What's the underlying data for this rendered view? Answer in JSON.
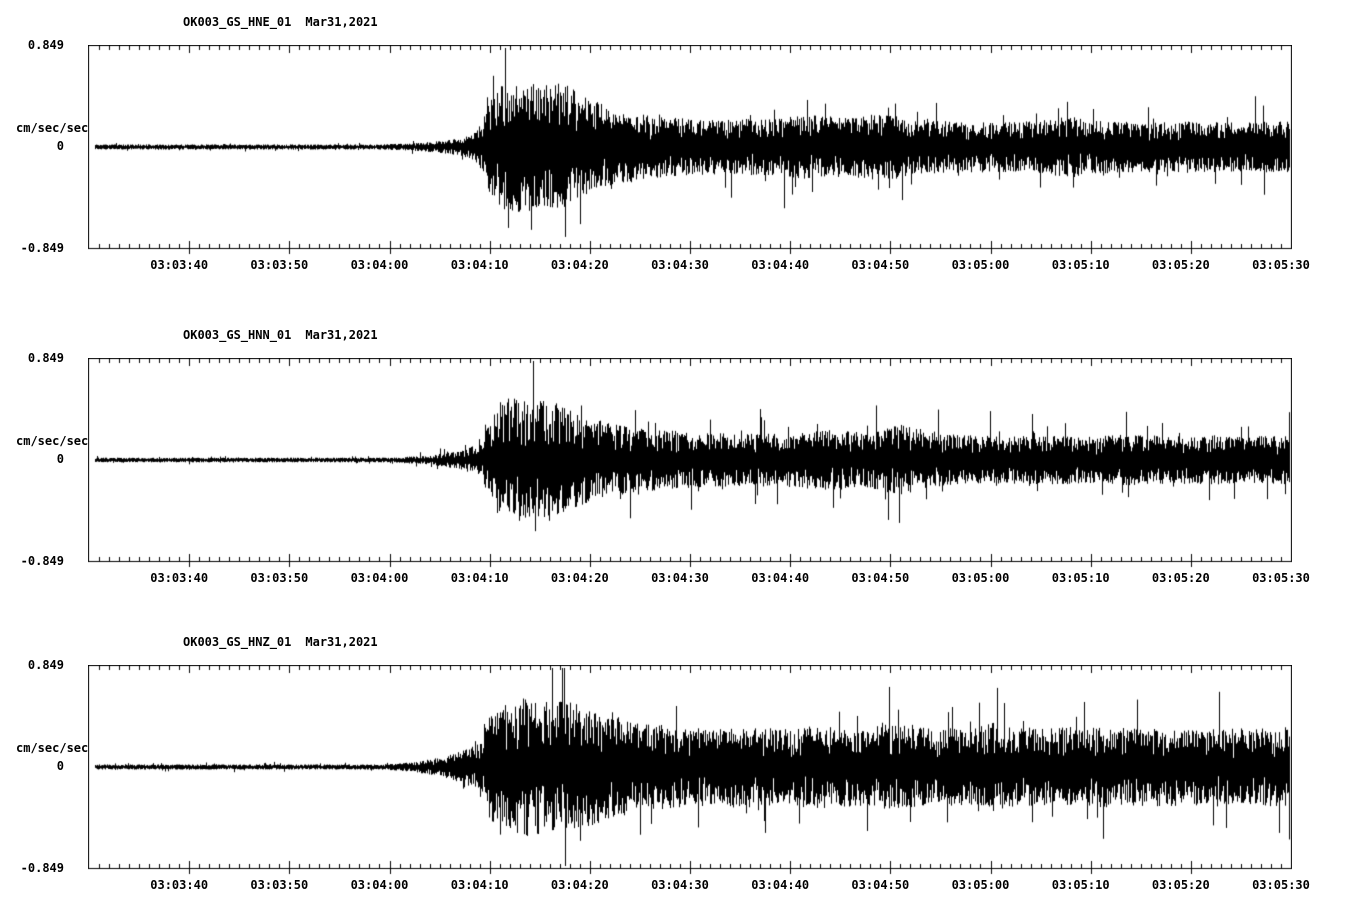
{
  "page": {
    "background": "#ffffff",
    "foreground": "#000000"
  },
  "chart_data": [
    {
      "type": "line",
      "subtype": "seismogram",
      "station_channel": "OK003_GS_HNE_01",
      "date": "Mar31,2021",
      "ylabel": "cm/sec/sec",
      "ylim": [
        -0.849,
        0.849
      ],
      "y_tick_labels": {
        "top": "0.849",
        "zero": "0",
        "bottom": "-0.849"
      },
      "x_start_time": "03:03:31",
      "x_end_time": "03:05:31",
      "x_tick_labels": [
        "03:03:40",
        "03:03:50",
        "03:04:00",
        "03:04:10",
        "03:04:20",
        "03:04:30",
        "03:04:40",
        "03:04:50",
        "03:05:00",
        "03:05:10",
        "03:05:20",
        "03:05:30"
      ],
      "x_tick_offsets_sec": [
        9,
        19,
        29,
        39,
        49,
        59,
        69,
        79,
        89,
        99,
        109,
        119
      ],
      "minor_tick_sec": 1,
      "major_tick_sec": 10,
      "seed": 11,
      "envelope": [
        [
          0,
          0.022
        ],
        [
          29,
          0.022
        ],
        [
          33,
          0.035
        ],
        [
          36,
          0.06
        ],
        [
          38,
          0.1
        ],
        [
          39,
          0.18
        ],
        [
          40,
          0.4
        ],
        [
          41,
          0.52
        ],
        [
          43,
          0.58
        ],
        [
          45,
          0.52
        ],
        [
          47,
          0.56
        ],
        [
          49,
          0.44
        ],
        [
          52,
          0.34
        ],
        [
          56,
          0.27
        ],
        [
          60,
          0.24
        ],
        [
          64,
          0.23
        ],
        [
          68,
          0.25
        ],
        [
          72,
          0.27
        ],
        [
          76,
          0.25
        ],
        [
          79,
          0.3
        ],
        [
          82,
          0.24
        ],
        [
          86,
          0.22
        ],
        [
          90,
          0.21
        ],
        [
          94,
          0.22
        ],
        [
          98,
          0.26
        ],
        [
          102,
          0.22
        ],
        [
          106,
          0.21
        ],
        [
          110,
          0.22
        ],
        [
          114,
          0.21
        ],
        [
          120,
          0.22
        ]
      ]
    },
    {
      "type": "line",
      "subtype": "seismogram",
      "station_channel": "OK003_GS_HNN_01",
      "date": "Mar31,2021",
      "ylabel": "cm/sec/sec",
      "ylim": [
        -0.849,
        0.849
      ],
      "y_tick_labels": {
        "top": "0.849",
        "zero": "0",
        "bottom": "-0.849"
      },
      "x_start_time": "03:03:31",
      "x_end_time": "03:05:31",
      "x_tick_labels": [
        "03:03:40",
        "03:03:50",
        "03:04:00",
        "03:04:10",
        "03:04:20",
        "03:04:30",
        "03:04:40",
        "03:04:50",
        "03:05:00",
        "03:05:10",
        "03:05:20",
        "03:05:30"
      ],
      "x_tick_offsets_sec": [
        9,
        19,
        29,
        39,
        49,
        59,
        69,
        79,
        89,
        99,
        109,
        119
      ],
      "minor_tick_sec": 1,
      "major_tick_sec": 10,
      "seed": 23,
      "envelope": [
        [
          0,
          0.02
        ],
        [
          30,
          0.02
        ],
        [
          34,
          0.04
        ],
        [
          37,
          0.08
        ],
        [
          39,
          0.14
        ],
        [
          40,
          0.35
        ],
        [
          41,
          0.5
        ],
        [
          42,
          0.55
        ],
        [
          44,
          0.48
        ],
        [
          46,
          0.52
        ],
        [
          48,
          0.42
        ],
        [
          51,
          0.33
        ],
        [
          55,
          0.27
        ],
        [
          60,
          0.24
        ],
        [
          65,
          0.22
        ],
        [
          70,
          0.23
        ],
        [
          74,
          0.26
        ],
        [
          78,
          0.24
        ],
        [
          81,
          0.3
        ],
        [
          84,
          0.23
        ],
        [
          88,
          0.21
        ],
        [
          92,
          0.2
        ],
        [
          96,
          0.21
        ],
        [
          100,
          0.2
        ],
        [
          104,
          0.22
        ],
        [
          108,
          0.2
        ],
        [
          112,
          0.21
        ],
        [
          116,
          0.2
        ],
        [
          120,
          0.21
        ]
      ]
    },
    {
      "type": "line",
      "subtype": "seismogram",
      "station_channel": "OK003_GS_HNZ_01",
      "date": "Mar31,2021",
      "ylabel": "cm/sec/sec",
      "ylim": [
        -0.849,
        0.849
      ],
      "y_tick_labels": {
        "top": "0.849",
        "zero": "0",
        "bottom": "-0.849"
      },
      "x_start_time": "03:03:31",
      "x_end_time": "03:05:31",
      "x_tick_labels": [
        "03:03:40",
        "03:03:50",
        "03:04:00",
        "03:04:10",
        "03:04:20",
        "03:04:30",
        "03:04:40",
        "03:04:50",
        "03:05:00",
        "03:05:10",
        "03:05:20",
        "03:05:30"
      ],
      "x_tick_offsets_sec": [
        9,
        19,
        29,
        39,
        49,
        59,
        69,
        79,
        89,
        99,
        109,
        119
      ],
      "minor_tick_sec": 1,
      "major_tick_sec": 10,
      "seed": 37,
      "envelope": [
        [
          0,
          0.022
        ],
        [
          29,
          0.022
        ],
        [
          32,
          0.04
        ],
        [
          35,
          0.08
        ],
        [
          37,
          0.13
        ],
        [
          39,
          0.2
        ],
        [
          40,
          0.45
        ],
        [
          42,
          0.55
        ],
        [
          44,
          0.6
        ],
        [
          46,
          0.55
        ],
        [
          48,
          0.58
        ],
        [
          50,
          0.5
        ],
        [
          53,
          0.42
        ],
        [
          57,
          0.36
        ],
        [
          61,
          0.33
        ],
        [
          65,
          0.35
        ],
        [
          69,
          0.33
        ],
        [
          73,
          0.35
        ],
        [
          77,
          0.33
        ],
        [
          80,
          0.36
        ],
        [
          84,
          0.33
        ],
        [
          88,
          0.34
        ],
        [
          89,
          0.4
        ],
        [
          92,
          0.34
        ],
        [
          96,
          0.33
        ],
        [
          100,
          0.35
        ],
        [
          104,
          0.33
        ],
        [
          108,
          0.34
        ],
        [
          112,
          0.32
        ],
        [
          116,
          0.33
        ],
        [
          120,
          0.34
        ]
      ]
    }
  ]
}
